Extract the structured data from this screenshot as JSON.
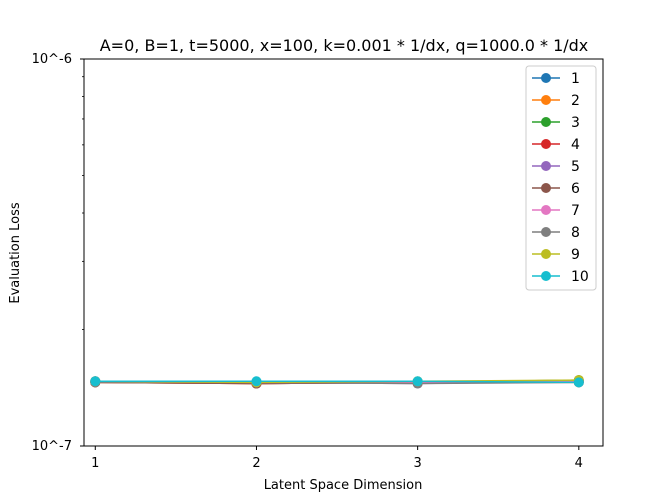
{
  "chart_data": {
    "type": "line",
    "title": "A=0, B=1, t=5000, x=100, k=0.001 * 1/dx, q=1000.0 * 1/dx",
    "xlabel": "Latent Space Dimension",
    "ylabel": "Evaluation Loss",
    "x": [
      1,
      2,
      3,
      4
    ],
    "xticks": [
      "1",
      "2",
      "3",
      "4"
    ],
    "xlim": [
      0.93,
      4.15
    ],
    "ylim": [
      1e-07,
      1e-06
    ],
    "yscale": "log",
    "yticks": [
      {
        "value": 1e-06,
        "label": "10^-6"
      },
      {
        "value": 1e-07,
        "label": "10^-7"
      }
    ],
    "grid": false,
    "legend": "top-right",
    "series": [
      {
        "name": "1",
        "color": "#1f77b4",
        "values": [
          1.47e-07,
          1.45e-07,
          1.46e-07,
          1.47e-07
        ]
      },
      {
        "name": "2",
        "color": "#ff7f0e",
        "values": [
          1.46e-07,
          1.45e-07,
          1.46e-07,
          1.48e-07
        ]
      },
      {
        "name": "3",
        "color": "#2ca02c",
        "values": [
          1.47e-07,
          1.46e-07,
          1.46e-07,
          1.48e-07
        ]
      },
      {
        "name": "4",
        "color": "#d62728",
        "values": [
          1.46e-07,
          1.45e-07,
          1.46e-07,
          1.47e-07
        ]
      },
      {
        "name": "5",
        "color": "#9467bd",
        "values": [
          1.47e-07,
          1.46e-07,
          1.45e-07,
          1.47e-07
        ]
      },
      {
        "name": "6",
        "color": "#8c564b",
        "values": [
          1.46e-07,
          1.45e-07,
          1.46e-07,
          1.46e-07
        ]
      },
      {
        "name": "7",
        "color": "#e377c2",
        "values": [
          1.47e-07,
          1.46e-07,
          1.46e-07,
          1.47e-07
        ]
      },
      {
        "name": "8",
        "color": "#7f7f7f",
        "values": [
          1.46e-07,
          1.46e-07,
          1.45e-07,
          1.46e-07
        ]
      },
      {
        "name": "9",
        "color": "#bcbd22",
        "values": [
          1.47e-07,
          1.46e-07,
          1.47e-07,
          1.48e-07
        ]
      },
      {
        "name": "10",
        "color": "#17becf",
        "values": [
          1.47e-07,
          1.47e-07,
          1.47e-07,
          1.46e-07
        ]
      }
    ]
  }
}
